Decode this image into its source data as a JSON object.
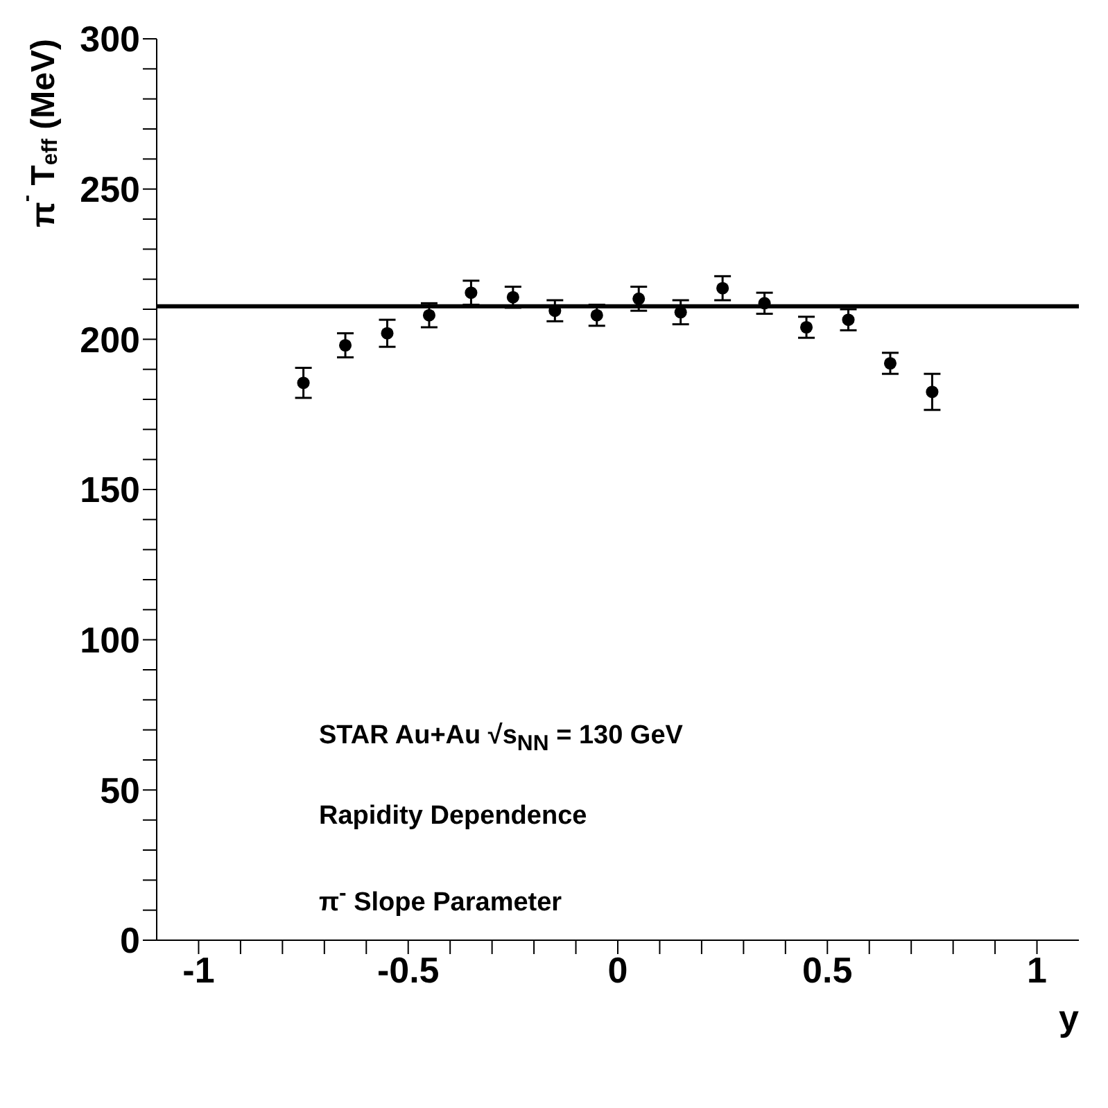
{
  "chart_data": {
    "type": "scatter",
    "xlabel": "y",
    "ylabel": "π$^{-}$ T$_{eff}$ (MeV)",
    "x": [
      -0.75,
      -0.65,
      -0.55,
      -0.45,
      -0.35,
      -0.25,
      -0.15,
      -0.05,
      0.05,
      0.15,
      0.25,
      0.35,
      0.45,
      0.55,
      0.65,
      0.75
    ],
    "series": [
      {
        "color": "#000000",
        "values": [
          185.5,
          198,
          202,
          208,
          215.5,
          214,
          209.5,
          208,
          213.5,
          209,
          217,
          212,
          204,
          206.5,
          192,
          182.5
        ],
        "errors": [
          5,
          4,
          4.5,
          4,
          4,
          3.5,
          3.5,
          3.5,
          4,
          4,
          4,
          3.5,
          3.5,
          3.5,
          3.5,
          6
        ]
      }
    ],
    "marker": "circle",
    "legend": false,
    "grid": false,
    "xlim": [
      -1.1,
      1.1
    ],
    "xticks": [
      -1,
      {
        "value": -0.9,
        "label": null
      },
      {
        "value": -0.8,
        "label": null
      },
      {
        "value": -0.7,
        "label": null
      },
      {
        "value": -0.6,
        "label": null
      },
      -0.5,
      {
        "value": -0.4,
        "label": null
      },
      {
        "value": -0.3,
        "label": null
      },
      {
        "value": -0.2,
        "label": null
      },
      {
        "value": -0.1,
        "label": null
      },
      0,
      {
        "value": 0.1,
        "label": null
      },
      {
        "value": 0.2,
        "label": null
      },
      {
        "value": 0.3,
        "label": null
      },
      {
        "value": 0.4,
        "label": null
      },
      0.5,
      {
        "value": 0.6,
        "label": null
      },
      {
        "value": 0.7,
        "label": null
      },
      {
        "value": 0.8,
        "label": null
      },
      {
        "value": 0.9,
        "label": null
      },
      1
    ],
    "ylim": [
      0,
      300
    ],
    "yticks": [
      0,
      {
        "value": 10,
        "label": null
      },
      {
        "value": 20,
        "label": null
      },
      {
        "value": 30,
        "label": null
      },
      {
        "value": 40,
        "label": null
      },
      50,
      {
        "value": 60,
        "label": null
      },
      {
        "value": 70,
        "label": null
      },
      {
        "value": 80,
        "label": null
      },
      {
        "value": 90,
        "label": null
      },
      100,
      {
        "value": 110,
        "label": null
      },
      {
        "value": 120,
        "label": null
      },
      {
        "value": 130,
        "label": null
      },
      {
        "value": 140,
        "label": null
      },
      150,
      {
        "value": 160,
        "label": null
      },
      {
        "value": 170,
        "label": null
      },
      {
        "value": 180,
        "label": null
      },
      {
        "value": 190,
        "label": null
      },
      200,
      {
        "value": 210,
        "label": null
      },
      {
        "value": 220,
        "label": null
      },
      {
        "value": 230,
        "label": null
      },
      {
        "value": 240,
        "label": null
      },
      250,
      {
        "value": 260,
        "label": null
      },
      {
        "value": 270,
        "label": null
      },
      {
        "value": 280,
        "label": null
      },
      {
        "value": 290,
        "label": null
      },
      300
    ],
    "ref_lines": [
      {
        "axis": "y",
        "value": 211,
        "color": "#000000",
        "line_style": "solid"
      }
    ],
    "annotations": [
      "STAR Au+Au √s$_{NN}$ = 130 GeV",
      "Rapidity Dependence",
      "π$^{-}$ Slope Parameter"
    ]
  }
}
